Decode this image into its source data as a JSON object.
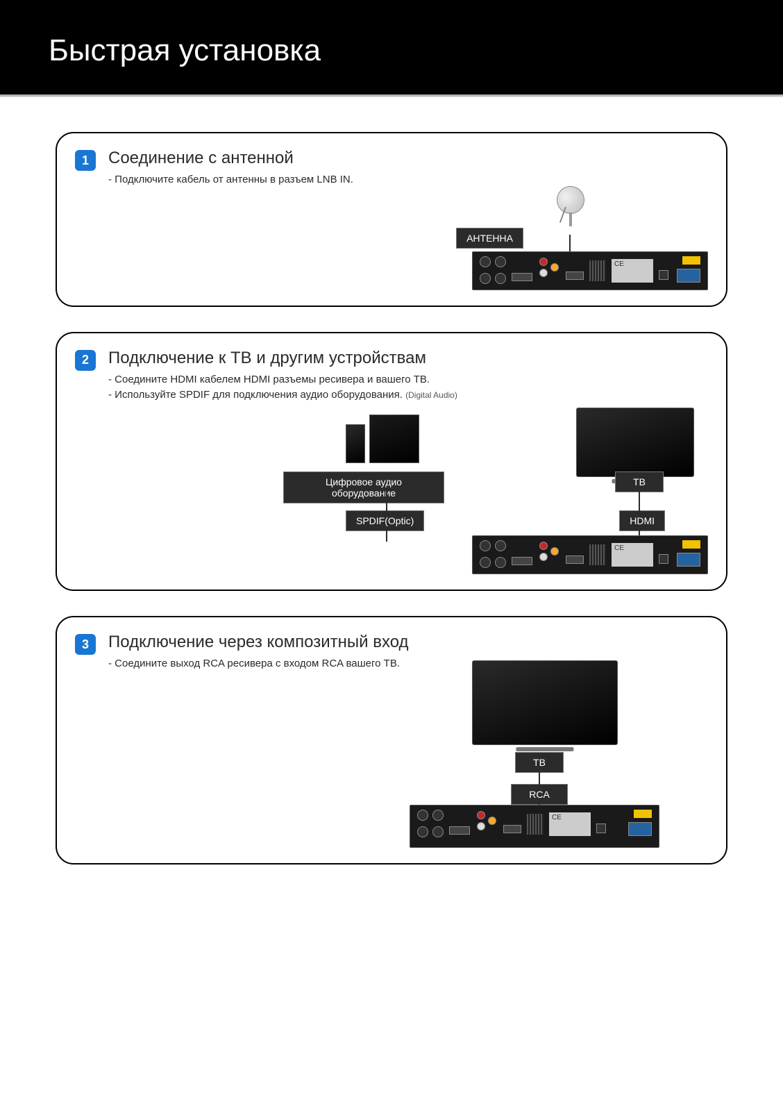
{
  "header": {
    "title": "Быстрая установка"
  },
  "colors": {
    "step_badge_bg": "#1976d2",
    "label_bg": "#2b2b2b",
    "label_fg": "#ffffff",
    "border": "#000000"
  },
  "steps": [
    {
      "num": "1",
      "title": "Соединение с антенной",
      "desc_lines": [
        "- Подключите кабель от антенны в разъем LNB IN."
      ],
      "diagram": {
        "type": "connection",
        "labels": {
          "antenna": "АНТЕННА"
        },
        "devices": [
          "satellite_dish",
          "receiver_back_panel"
        ]
      }
    },
    {
      "num": "2",
      "title": "Подключение к ТВ и другим устройствам",
      "desc_lines": [
        "- Соедините HDMI кабелем HDMI разъемы ресивера и вашего ТВ.",
        "- Используйте SPDIF для подключения аудио оборудования."
      ],
      "hint": "(Digital Audio)",
      "diagram": {
        "type": "connection",
        "labels": {
          "audio_equipment": "Цифровое аудио оборудование",
          "tv": "ТВ",
          "spdif": "SPDIF(Optic)",
          "hdmi": "HDMI"
        },
        "devices": [
          "speakers",
          "tv",
          "receiver_back_panel"
        ]
      }
    },
    {
      "num": "3",
      "title": "Подключение через композитный вход",
      "desc_lines": [
        "- Соедините выход RCA ресивера с входом RCA вашего ТВ."
      ],
      "diagram": {
        "type": "connection",
        "labels": {
          "tv": "ТВ",
          "rca": "RCA"
        },
        "devices": [
          "tv",
          "receiver_back_panel"
        ]
      }
    }
  ]
}
